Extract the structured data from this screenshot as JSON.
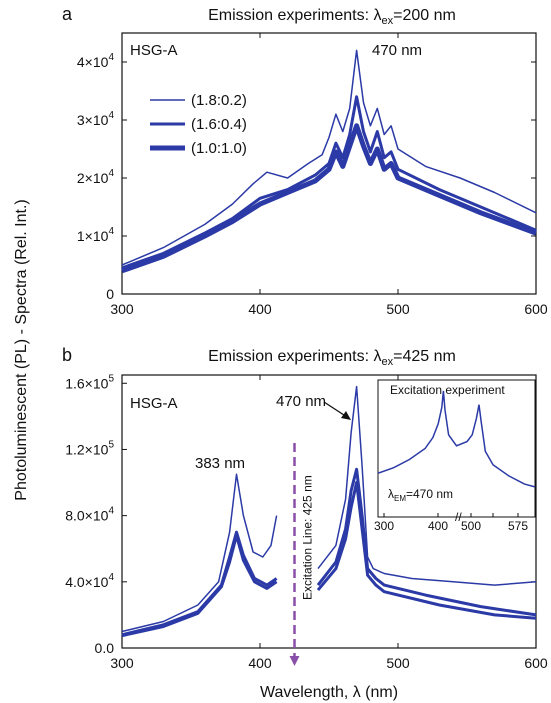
{
  "ylabel_shared": "Photoluminescent (PL) - Spectra (Rel. Int.)",
  "colors": {
    "series": "#2b3aa6",
    "arrow": "#8a4fa8",
    "axis": "#111111"
  },
  "chart_data": [
    {
      "panel": "a",
      "type": "line",
      "title": "Emission experiments: λex=200 nm",
      "sample_label": "HSG-A",
      "peak_label": "470 nm",
      "xlabel": "",
      "ylabel": "Photoluminescent (PL) - Spectra (Rel. Int.)",
      "xlim": [
        300,
        600
      ],
      "ylim": [
        0,
        45000
      ],
      "xticks": [
        300,
        400,
        500,
        600
      ],
      "xtick_labels": [
        "300",
        "400",
        "500",
        "600"
      ],
      "yticks": [
        0,
        10000,
        20000,
        30000,
        40000
      ],
      "ytick_labels": [
        {
          "base": "0",
          "exp": ""
        },
        {
          "base": "1×10",
          "exp": "4"
        },
        {
          "base": "2×10",
          "exp": "4"
        },
        {
          "base": "3×10",
          "exp": "4"
        },
        {
          "base": "4×10",
          "exp": "4"
        }
      ],
      "legend": "top-left",
      "series": [
        {
          "name": "(1.8:0.2)",
          "width": 1.5,
          "points": [
            [
              300,
              5000
            ],
            [
              330,
              8000
            ],
            [
              360,
              12000
            ],
            [
              380,
              15500
            ],
            [
              395,
              19000
            ],
            [
              405,
              21000
            ],
            [
              420,
              20000
            ],
            [
              435,
              22500
            ],
            [
              445,
              24000
            ],
            [
              450,
              27000
            ],
            [
              455,
              31000
            ],
            [
              460,
              28000
            ],
            [
              465,
              32000
            ],
            [
              470,
              42000
            ],
            [
              475,
              33000
            ],
            [
              480,
              29000
            ],
            [
              485,
              32000
            ],
            [
              490,
              27500
            ],
            [
              495,
              29000
            ],
            [
              500,
              25000
            ],
            [
              520,
              22000
            ],
            [
              545,
              20000
            ],
            [
              570,
              17500
            ],
            [
              600,
              14000
            ]
          ]
        },
        {
          "name": "(1.6:0.4)",
          "width": 3,
          "points": [
            [
              300,
              4500
            ],
            [
              330,
              7000
            ],
            [
              360,
              10500
            ],
            [
              380,
              13000
            ],
            [
              400,
              16500
            ],
            [
              420,
              18000
            ],
            [
              440,
              20500
            ],
            [
              450,
              22500
            ],
            [
              455,
              26000
            ],
            [
              460,
              23500
            ],
            [
              465,
              27500
            ],
            [
              470,
              34000
            ],
            [
              475,
              28000
            ],
            [
              480,
              24500
            ],
            [
              485,
              28000
            ],
            [
              490,
              23500
            ],
            [
              495,
              24500
            ],
            [
              500,
              21500
            ],
            [
              530,
              18000
            ],
            [
              560,
              15000
            ],
            [
              600,
              11000
            ]
          ]
        },
        {
          "name": "(1.0:1.0)",
          "width": 5,
          "points": [
            [
              300,
              4000
            ],
            [
              330,
              6500
            ],
            [
              360,
              10000
            ],
            [
              380,
              12500
            ],
            [
              400,
              15500
            ],
            [
              420,
              17500
            ],
            [
              440,
              19500
            ],
            [
              450,
              21500
            ],
            [
              455,
              24500
            ],
            [
              460,
              22000
            ],
            [
              465,
              25500
            ],
            [
              470,
              29000
            ],
            [
              475,
              25500
            ],
            [
              480,
              22500
            ],
            [
              485,
              25000
            ],
            [
              490,
              21500
            ],
            [
              495,
              22500
            ],
            [
              500,
              20000
            ],
            [
              530,
              17000
            ],
            [
              560,
              14000
            ],
            [
              600,
              10500
            ]
          ]
        }
      ]
    },
    {
      "panel": "b",
      "type": "line",
      "title": "Emission experiments: λex=425 nm",
      "sample_label": "HSG-A",
      "peak_labels": [
        "470 nm",
        "383 nm"
      ],
      "excitation_line_label": "Excitation Line: 425 nm",
      "xlabel": "Wavelength, λ (nm)",
      "ylabel": "Photoluminescent (PL) - Spectra (Rel. Int.)",
      "xlim": [
        300,
        600
      ],
      "ylim": [
        0,
        165000
      ],
      "xticks": [
        300,
        400,
        500,
        600
      ],
      "xtick_labels": [
        "300",
        "400",
        "500",
        "600"
      ],
      "yticks": [
        0,
        40000,
        80000,
        120000,
        160000
      ],
      "ytick_labels": [
        {
          "base": "0.0",
          "exp": ""
        },
        {
          "base": "4.0×10",
          "exp": "4"
        },
        {
          "base": "8.0×10",
          "exp": "4"
        },
        {
          "base": "1.2×10",
          "exp": "5"
        },
        {
          "base": "1.6×10",
          "exp": "5"
        }
      ],
      "series": [
        {
          "name": "",
          "width": 1.5,
          "segments": [
            [
              [
                300,
                10000
              ],
              [
                330,
                16000
              ],
              [
                355,
                26000
              ],
              [
                370,
                40000
              ],
              [
                378,
                70000
              ],
              [
                383,
                105000
              ],
              [
                388,
                80000
              ],
              [
                395,
                58000
              ],
              [
                402,
                55000
              ],
              [
                408,
                62000
              ],
              [
                412,
                80000
              ]
            ],
            [
              [
                442,
                48000
              ],
              [
                455,
                62000
              ],
              [
                462,
                90000
              ],
              [
                466,
                130000
              ],
              [
                470,
                158000
              ],
              [
                474,
                110000
              ],
              [
                478,
                55000
              ],
              [
                482,
                48000
              ],
              [
                490,
                45000
              ],
              [
                510,
                42000
              ],
              [
                540,
                40000
              ],
              [
                570,
                38000
              ],
              [
                600,
                40000
              ]
            ]
          ]
        },
        {
          "name": "",
          "width": 3,
          "segments": [
            [
              [
                300,
                8000
              ],
              [
                330,
                14000
              ],
              [
                355,
                22000
              ],
              [
                372,
                38000
              ],
              [
                378,
                55000
              ],
              [
                383,
                70000
              ],
              [
                388,
                56000
              ],
              [
                396,
                42000
              ],
              [
                405,
                38000
              ],
              [
                412,
                42000
              ]
            ],
            [
              [
                442,
                38000
              ],
              [
                455,
                52000
              ],
              [
                462,
                72000
              ],
              [
                466,
                95000
              ],
              [
                470,
                108000
              ],
              [
                474,
                80000
              ],
              [
                478,
                48000
              ],
              [
                484,
                42000
              ],
              [
                490,
                38000
              ],
              [
                520,
                32000
              ],
              [
                560,
                25000
              ],
              [
                600,
                20000
              ]
            ]
          ]
        },
        {
          "name": "",
          "width": 3,
          "segments": [
            [
              [
                300,
                7500
              ],
              [
                330,
                13000
              ],
              [
                355,
                21000
              ],
              [
                372,
                37000
              ],
              [
                378,
                52000
              ],
              [
                383,
                68000
              ],
              [
                388,
                53000
              ],
              [
                396,
                40000
              ],
              [
                405,
                36000
              ],
              [
                412,
                40000
              ]
            ],
            [
              [
                442,
                35000
              ],
              [
                455,
                48000
              ],
              [
                462,
                66000
              ],
              [
                466,
                85000
              ],
              [
                470,
                100000
              ],
              [
                474,
                72000
              ],
              [
                478,
                44000
              ],
              [
                484,
                38000
              ],
              [
                490,
                34000
              ],
              [
                530,
                26000
              ],
              [
                570,
                20000
              ],
              [
                600,
                18000
              ]
            ]
          ]
        }
      ],
      "inset": {
        "title": "Excitation experiment",
        "label_base": "λ",
        "label_sub": "EM",
        "label_rest": "=470 nm",
        "xticks": [
          "300",
          "400",
          "500",
          "",
          "575"
        ],
        "xlim": [
          300,
          600
        ],
        "ylim": [
          0,
          1
        ],
        "points": [
          [
            300,
            0.32
          ],
          [
            330,
            0.36
          ],
          [
            360,
            0.42
          ],
          [
            390,
            0.5
          ],
          [
            405,
            0.58
          ],
          [
            415,
            0.68
          ],
          [
            422,
            0.8
          ],
          [
            425,
            0.92
          ],
          [
            428,
            0.78
          ],
          [
            435,
            0.6
          ],
          [
            450,
            0.52
          ],
          [
            470,
            0.55
          ],
          [
            480,
            0.6
          ],
          [
            488,
            0.72
          ],
          [
            493,
            0.82
          ],
          [
            497,
            0.7
          ],
          [
            505,
            0.48
          ],
          [
            520,
            0.38
          ],
          [
            550,
            0.3
          ],
          [
            580,
            0.24
          ],
          [
            600,
            0.22
          ]
        ]
      }
    }
  ]
}
